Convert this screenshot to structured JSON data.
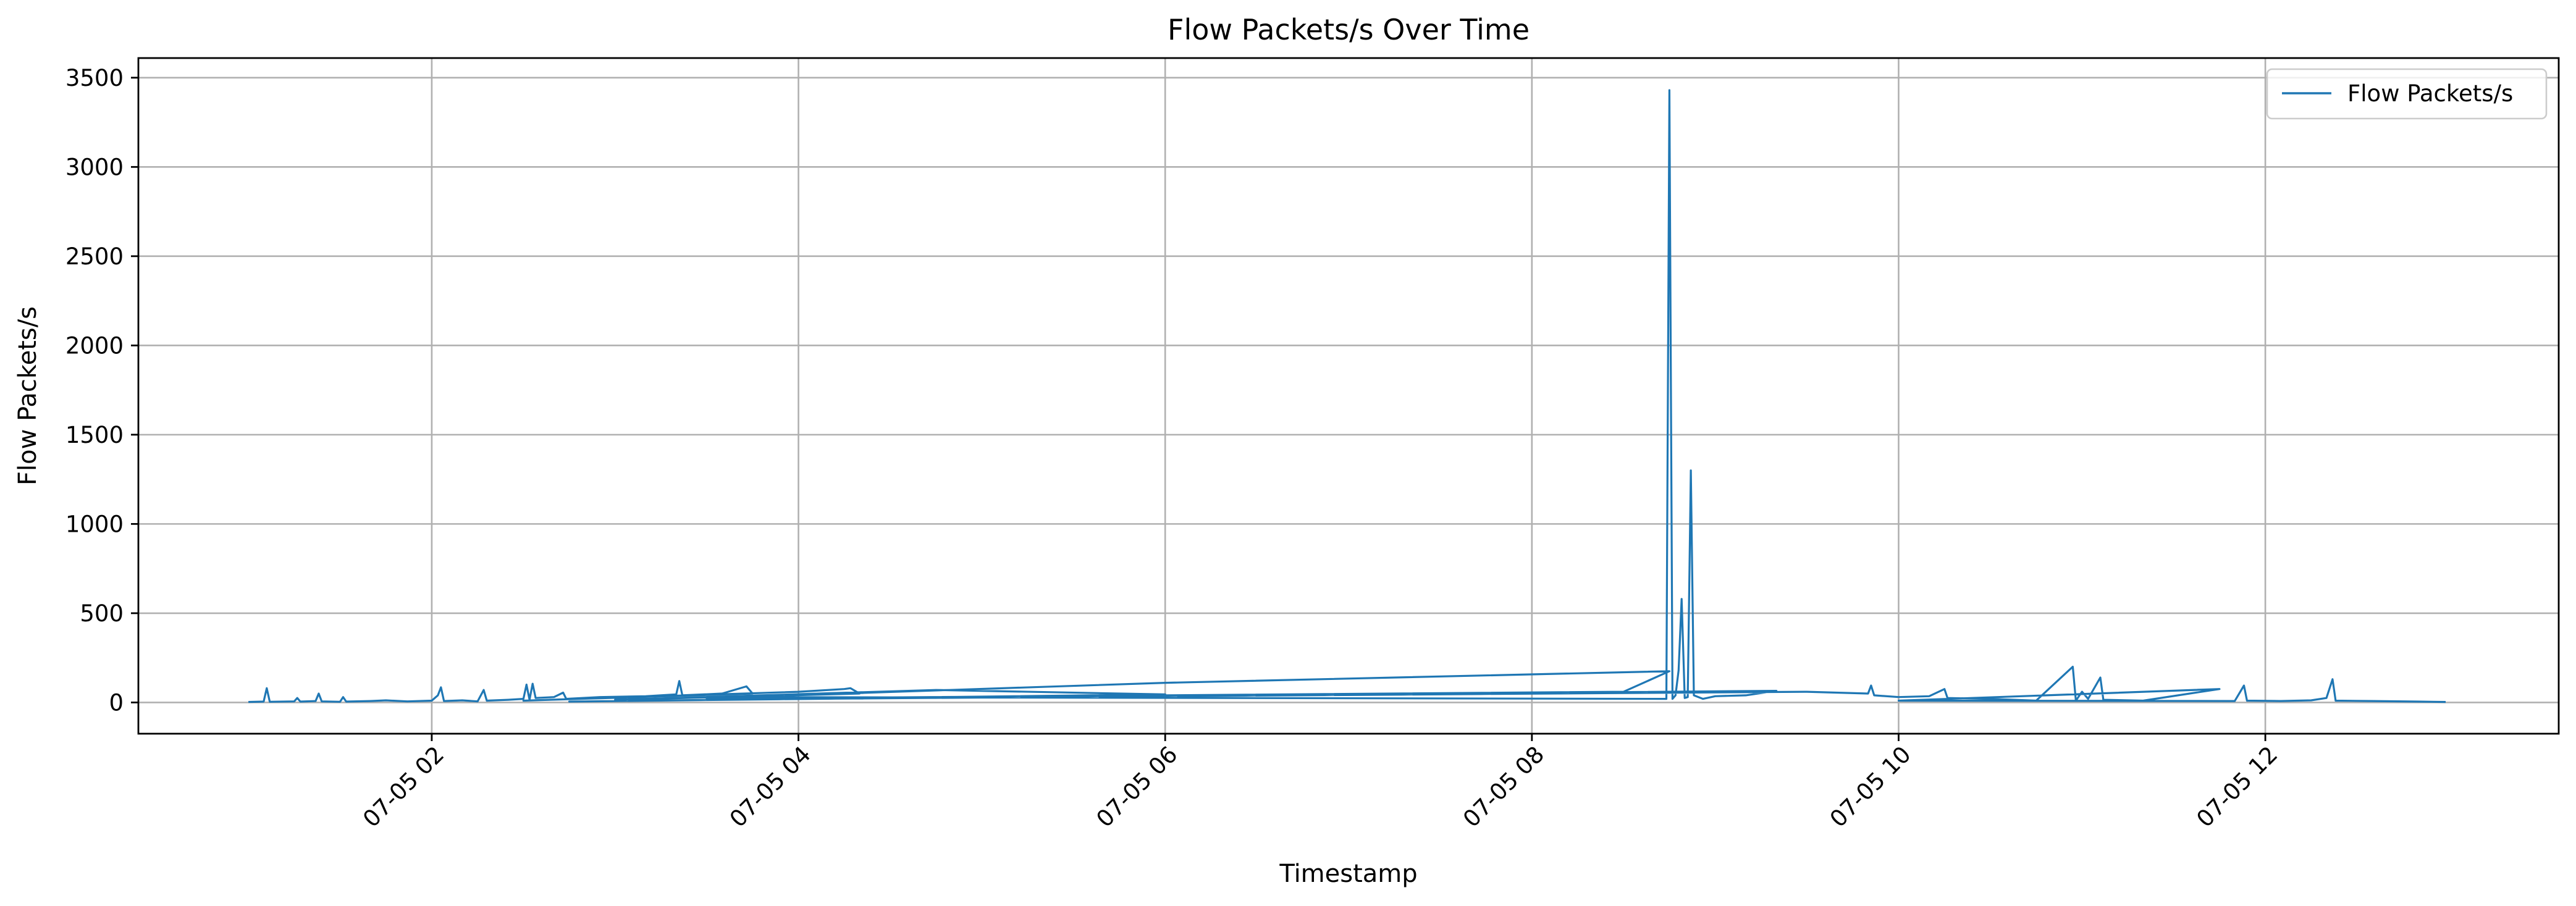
{
  "chart_data": {
    "type": "line",
    "title": "Flow Packets/s Over Time",
    "xlabel": "Timestamp",
    "ylabel": "Flow Packets/s",
    "x_axis_kind": "datetime",
    "xlim": [
      "2017-07-05 00:24",
      "2017-07-05 13:36"
    ],
    "ylim": [
      -175,
      3610
    ],
    "grid": true,
    "legend_position": "top-right",
    "line_color": "#1f77b4",
    "x_ticks": [
      {
        "value": "2017-07-05 02:00",
        "label": "07-05 02"
      },
      {
        "value": "2017-07-05 04:00",
        "label": "07-05 04"
      },
      {
        "value": "2017-07-05 06:00",
        "label": "07-05 06"
      },
      {
        "value": "2017-07-05 08:00",
        "label": "07-05 08"
      },
      {
        "value": "2017-07-05 10:00",
        "label": "07-05 10"
      },
      {
        "value": "2017-07-05 12:00",
        "label": "07-05 12"
      }
    ],
    "y_ticks": [
      0,
      500,
      1000,
      1500,
      2000,
      2500,
      3000,
      3500
    ],
    "series": [
      {
        "name": "Flow Packets/s",
        "points": [
          [
            "2017-07-05 01:00",
            3
          ],
          [
            "2017-07-05 01:05",
            5
          ],
          [
            "2017-07-05 01:06",
            80
          ],
          [
            "2017-07-05 01:07",
            4
          ],
          [
            "2017-07-05 01:15",
            6
          ],
          [
            "2017-07-05 01:16",
            25
          ],
          [
            "2017-07-05 01:17",
            5
          ],
          [
            "2017-07-05 01:22",
            8
          ],
          [
            "2017-07-05 01:23",
            50
          ],
          [
            "2017-07-05 01:24",
            6
          ],
          [
            "2017-07-05 01:30",
            4
          ],
          [
            "2017-07-05 01:31",
            30
          ],
          [
            "2017-07-05 01:32",
            5
          ],
          [
            "2017-07-05 01:40",
            8
          ],
          [
            "2017-07-05 01:45",
            12
          ],
          [
            "2017-07-05 01:52",
            6
          ],
          [
            "2017-07-05 02:00",
            10
          ],
          [
            "2017-07-05 02:02",
            40
          ],
          [
            "2017-07-05 02:03",
            85
          ],
          [
            "2017-07-05 02:04",
            8
          ],
          [
            "2017-07-05 02:10",
            12
          ],
          [
            "2017-07-05 02:15",
            6
          ],
          [
            "2017-07-05 02:17",
            70
          ],
          [
            "2017-07-05 02:18",
            10
          ],
          [
            "2017-07-05 02:25",
            15
          ],
          [
            "2017-07-05 02:30",
            20
          ],
          [
            "2017-07-05 02:31",
            100
          ],
          [
            "2017-07-05 02:32",
            15
          ],
          [
            "2017-07-05 02:33",
            105
          ],
          [
            "2017-07-05 02:34",
            25
          ],
          [
            "2017-07-05 02:40",
            30
          ],
          [
            "2017-07-05 02:43",
            55
          ],
          [
            "2017-07-05 02:44",
            20
          ],
          [
            "2017-07-05 02:55",
            30
          ],
          [
            "2017-07-05 03:10",
            35
          ],
          [
            "2017-07-05 03:15",
            40
          ],
          [
            "2017-07-05 03:20",
            45
          ],
          [
            "2017-07-05 03:21",
            120
          ],
          [
            "2017-07-05 03:22",
            40
          ],
          [
            "2017-07-05 03:35",
            50
          ],
          [
            "2017-07-05 03:43",
            90
          ],
          [
            "2017-07-05 03:45",
            50
          ],
          [
            "2017-07-05 02:30",
            10
          ],
          [
            "2017-07-05 04:00",
            60
          ],
          [
            "2017-07-05 04:15",
            75
          ],
          [
            "2017-07-05 04:17",
            80
          ],
          [
            "2017-07-05 04:20",
            50
          ],
          [
            "2017-07-05 03:00",
            15
          ],
          [
            "2017-07-05 04:45",
            70
          ],
          [
            "2017-07-05 06:00",
            45
          ],
          [
            "2017-07-05 02:45",
            5
          ],
          [
            "2017-07-05 05:00",
            30
          ],
          [
            "2017-07-05 08:00",
            50
          ],
          [
            "2017-07-05 03:30",
            20
          ],
          [
            "2017-07-05 08:30",
            60
          ],
          [
            "2017-07-05 08:45",
            175
          ],
          [
            "2017-07-05 06:00",
            110
          ],
          [
            "2017-07-05 03:40",
            30
          ],
          [
            "2017-07-05 08:44",
            20
          ],
          [
            "2017-07-05 08:45",
            3430
          ],
          [
            "2017-07-05 08:46",
            20
          ],
          [
            "2017-07-05 08:47",
            40
          ],
          [
            "2017-07-05 08:48",
            180
          ],
          [
            "2017-07-05 08:49",
            580
          ],
          [
            "2017-07-05 08:50",
            25
          ],
          [
            "2017-07-05 08:51",
            30
          ],
          [
            "2017-07-05 08:52",
            1300
          ],
          [
            "2017-07-05 08:53",
            40
          ],
          [
            "2017-07-05 08:56",
            20
          ],
          [
            "2017-07-05 09:00",
            35
          ],
          [
            "2017-07-05 09:10",
            40
          ],
          [
            "2017-07-05 09:20",
            65
          ],
          [
            "2017-07-05 04:00",
            20
          ],
          [
            "2017-07-05 09:30",
            60
          ],
          [
            "2017-07-05 09:50",
            50
          ],
          [
            "2017-07-05 09:51",
            95
          ],
          [
            "2017-07-05 09:52",
            40
          ],
          [
            "2017-07-05 10:00",
            30
          ],
          [
            "2017-07-05 10:10",
            35
          ],
          [
            "2017-07-05 10:15",
            75
          ],
          [
            "2017-07-05 10:16",
            25
          ],
          [
            "2017-07-05 10:30",
            20
          ],
          [
            "2017-07-05 10:45",
            10
          ],
          [
            "2017-07-05 10:57",
            200
          ],
          [
            "2017-07-05 10:58",
            10
          ],
          [
            "2017-07-05 11:00",
            60
          ],
          [
            "2017-07-05 11:02",
            20
          ],
          [
            "2017-07-05 11:06",
            140
          ],
          [
            "2017-07-05 11:07",
            15
          ],
          [
            "2017-07-05 11:20",
            10
          ],
          [
            "2017-07-05 11:45",
            75
          ],
          [
            "2017-07-05 10:00",
            10
          ],
          [
            "2017-07-05 11:50",
            8
          ],
          [
            "2017-07-05 11:53",
            95
          ],
          [
            "2017-07-05 11:54",
            10
          ],
          [
            "2017-07-05 12:05",
            8
          ],
          [
            "2017-07-05 12:15",
            12
          ],
          [
            "2017-07-05 12:20",
            25
          ],
          [
            "2017-07-05 12:22",
            130
          ],
          [
            "2017-07-05 12:23",
            10
          ],
          [
            "2017-07-05 12:35",
            8
          ],
          [
            "2017-07-05 12:50",
            5
          ],
          [
            "2017-07-05 12:59",
            3
          ]
        ]
      }
    ]
  }
}
